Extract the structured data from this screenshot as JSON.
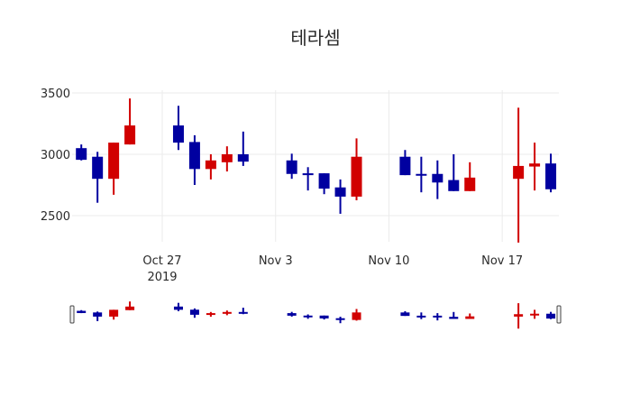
{
  "chart_data": {
    "type": "candlestick",
    "title": "테라셈",
    "xlabel": "",
    "ylabel": "",
    "ylim": [
      2250,
      3500
    ],
    "yticks": [
      2500,
      3000,
      3500
    ],
    "xticks": [
      {
        "date": "2019-10-27",
        "label": "Oct 27",
        "sublabel": "2019"
      },
      {
        "date": "2019-11-03",
        "label": "Nov 3",
        "sublabel": ""
      },
      {
        "date": "2019-11-10",
        "label": "Nov 10",
        "sublabel": ""
      },
      {
        "date": "2019-11-17",
        "label": "Nov 17",
        "sublabel": ""
      }
    ],
    "grid": true,
    "rangeslider": true,
    "colors": {
      "increasing": "#d10000",
      "decreasing": "#0000a0"
    },
    "x": [
      "2019-10-22",
      "2019-10-23",
      "2019-10-24",
      "2019-10-25",
      "2019-10-28",
      "2019-10-29",
      "2019-10-30",
      "2019-10-31",
      "2019-11-01",
      "2019-11-04",
      "2019-11-05",
      "2019-11-06",
      "2019-11-07",
      "2019-11-08",
      "2019-11-11",
      "2019-11-12",
      "2019-11-13",
      "2019-11-14",
      "2019-11-15",
      "2019-11-18",
      "2019-11-19",
      "2019-11-20"
    ],
    "open": [
      3050,
      2980,
      2800,
      3080,
      3235,
      3100,
      2880,
      2935,
      3000,
      2950,
      2845,
      2845,
      2730,
      2655,
      2980,
      2840,
      2840,
      2790,
      2700,
      2800,
      2900,
      2925
    ],
    "high": [
      3080,
      3020,
      3095,
      3455,
      3395,
      3155,
      3000,
      3065,
      3185,
      3005,
      2895,
      2845,
      2795,
      3130,
      3035,
      2980,
      2950,
      3000,
      2935,
      3380,
      3095,
      3005
    ],
    "low": [
      2950,
      2605,
      2670,
      3080,
      3035,
      2750,
      2795,
      2860,
      2905,
      2800,
      2705,
      2675,
      2515,
      2625,
      2830,
      2690,
      2635,
      2700,
      2700,
      2280,
      2705,
      2690
    ],
    "close": [
      2955,
      2800,
      3095,
      3235,
      3095,
      2880,
      2950,
      3000,
      2940,
      2840,
      2830,
      2720,
      2655,
      2980,
      2830,
      2830,
      2770,
      2700,
      2810,
      2905,
      2925,
      2715
    ]
  }
}
